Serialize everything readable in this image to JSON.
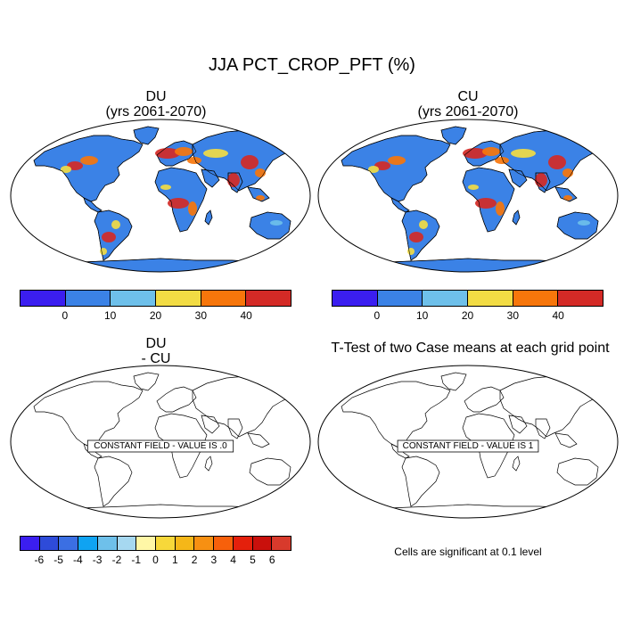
{
  "main_title": "JJA PCT_CROP_PFT (%)",
  "panels": [
    {
      "id": "du",
      "title_line1": "DU",
      "title_line2": "(yrs 2061-2070)",
      "kind": "field"
    },
    {
      "id": "cu",
      "title_line1": "CU",
      "title_line2": "(yrs 2061-2070)",
      "kind": "field"
    },
    {
      "id": "diff",
      "title_line1": "DU",
      "title_line2": "- CU",
      "kind": "constant",
      "label": "CONSTANT FIELD - VALUE IS .0"
    },
    {
      "id": "ttest",
      "title_line1": "T-Test of two Case means at each grid point",
      "title_line2": "",
      "kind": "constant",
      "label": "CONSTANT FIELD - VALUE IS 1"
    }
  ],
  "colorbar_field": {
    "colors": [
      "#3b1ef0",
      "#3b82e6",
      "#6ec0ea",
      "#f2dc44",
      "#f7760b",
      "#d42a26"
    ],
    "labels": [
      "0",
      "10",
      "20",
      "30",
      "40"
    ]
  },
  "colorbar_diff": {
    "colors": [
      "#3b1ef0",
      "#2e4bd9",
      "#3b6fe3",
      "#0fa3f2",
      "#6ec0ea",
      "#a6d8f0",
      "#fff7a6",
      "#f7d83a",
      "#f5b718",
      "#f79012",
      "#f7600b",
      "#e4200c",
      "#c9100c",
      "#d83a2c"
    ],
    "labels": [
      "-6",
      "-5",
      "-4",
      "-3",
      "-2",
      "-1",
      "0",
      "1",
      "2",
      "3",
      "4",
      "5",
      "6"
    ]
  },
  "significance_note": "Cells are significant at 0.1 level",
  "colors": {
    "ocean_fill": "#ffffff",
    "land_field": "#3b82e6",
    "coastline": "#000000"
  }
}
